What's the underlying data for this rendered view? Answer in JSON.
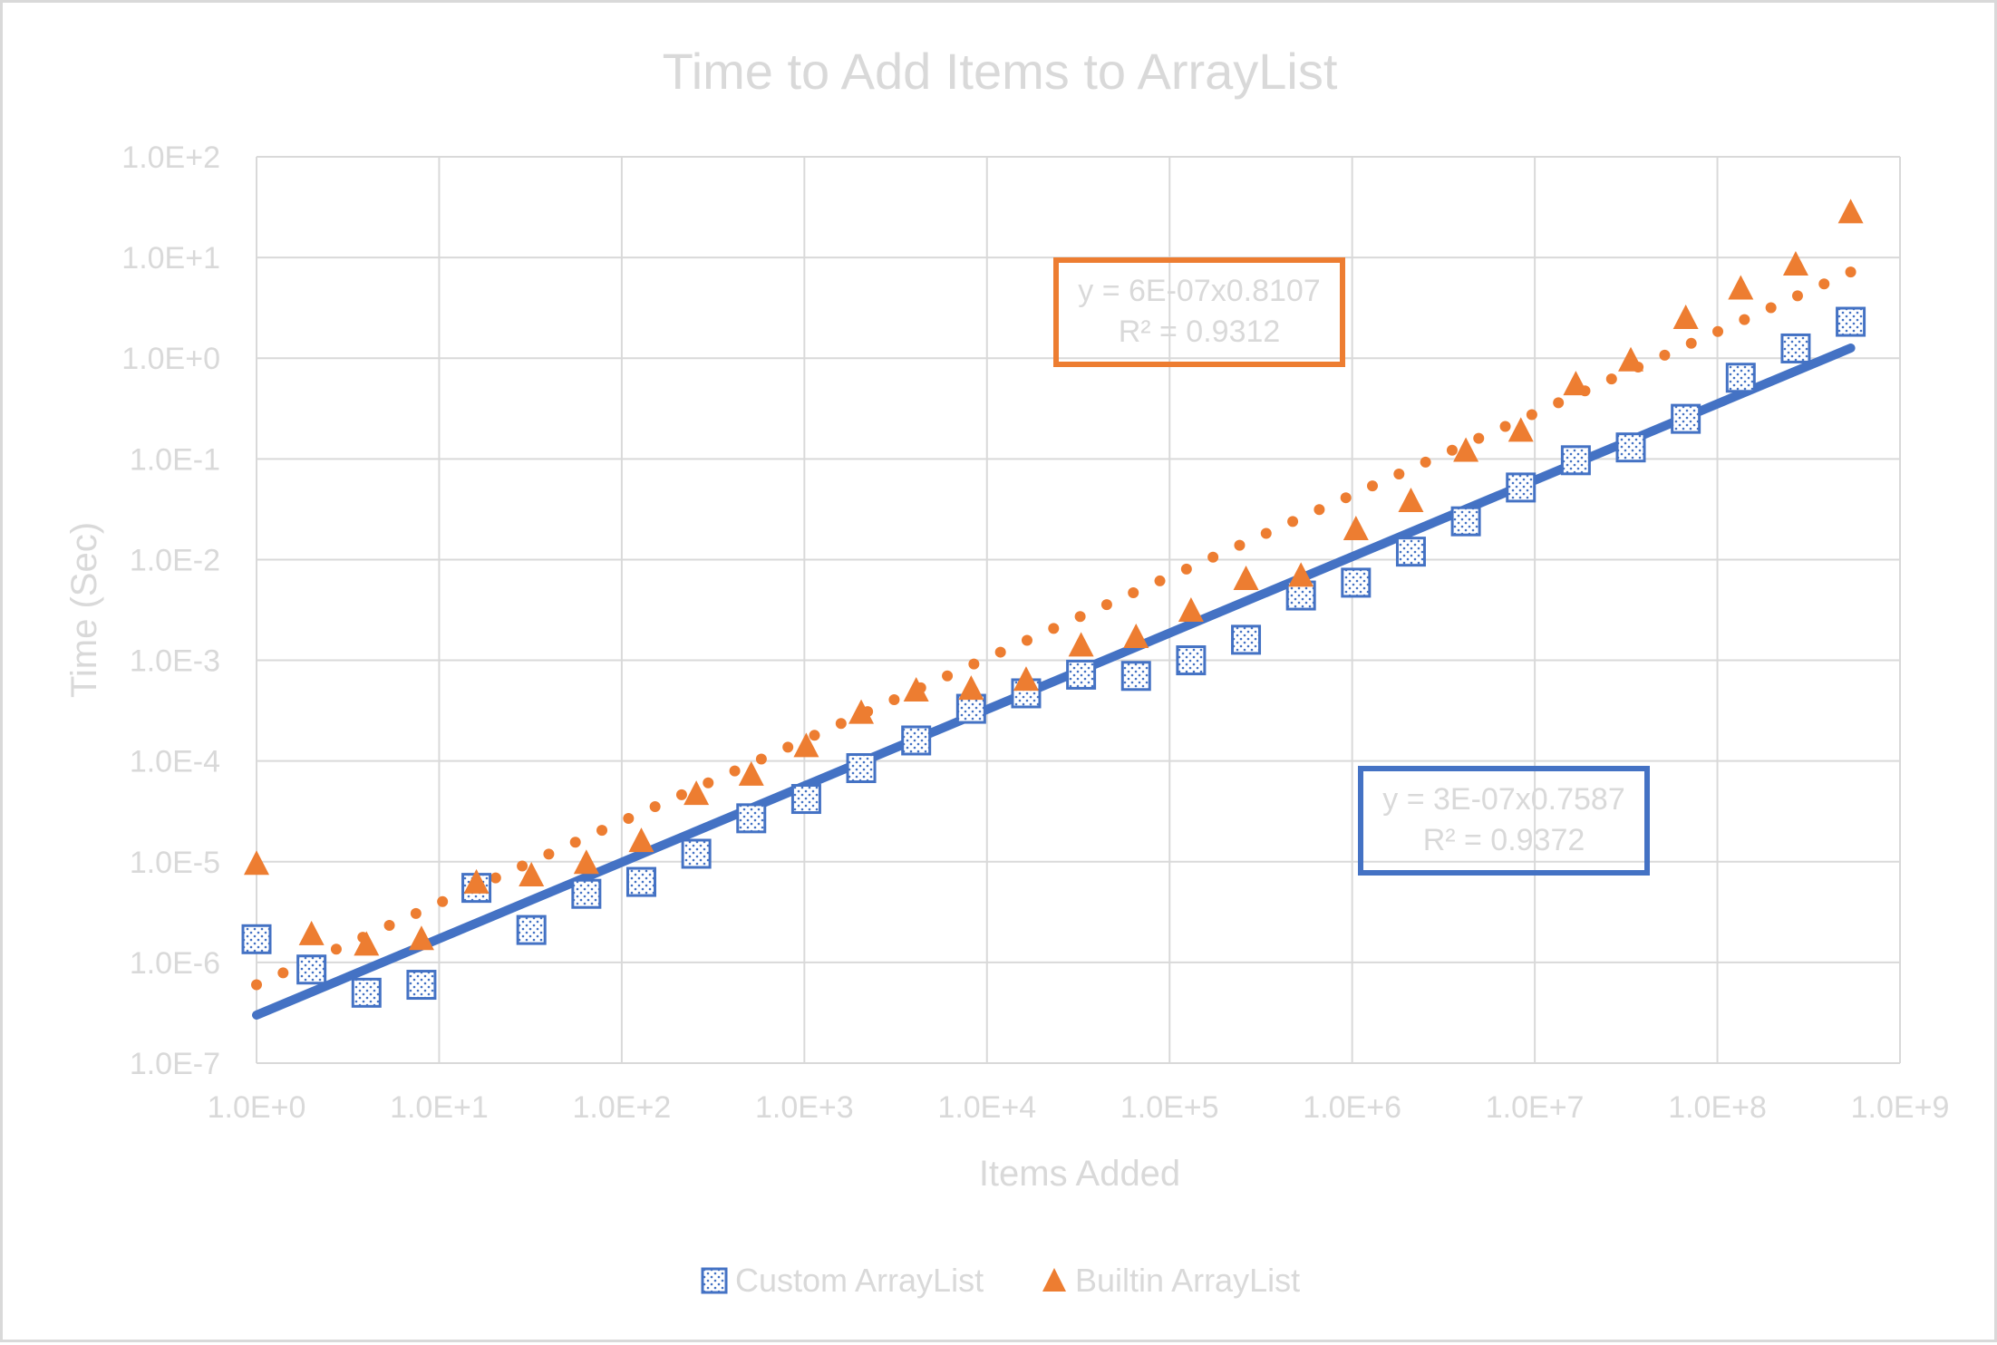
{
  "chart_data": {
    "type": "scatter",
    "title": "Time to Add Items to ArrayList",
    "xlabel": "Items Added",
    "ylabel": "Time (Sec)",
    "x_scale": "log10",
    "y_scale": "log10",
    "xlim": [
      1,
      1000000000
    ],
    "ylim": [
      1e-07,
      100
    ],
    "grid": true,
    "legend_position": "bottom",
    "x_ticks": [
      1,
      10,
      100,
      1000,
      10000,
      100000,
      1000000,
      10000000,
      100000000,
      1000000000
    ],
    "x_tick_labels": [
      "1.0E+0",
      "1.0E+1",
      "1.0E+2",
      "1.0E+3",
      "1.0E+4",
      "1.0E+5",
      "1.0E+6",
      "1.0E+7",
      "1.0E+8",
      "1.0E+9"
    ],
    "y_ticks": [
      1e-07,
      1e-06,
      1e-05,
      0.0001,
      0.001,
      0.01,
      0.1,
      1,
      10,
      100
    ],
    "y_tick_labels": [
      "1.0E-7",
      "1.0E-6",
      "1.0E-5",
      "1.0E-4",
      "1.0E-3",
      "1.0E-2",
      "1.0E-1",
      "1.0E+0",
      "1.0E+1",
      "1.0E+2"
    ],
    "x": [
      1,
      2,
      4,
      8,
      16,
      32,
      64,
      128,
      256,
      512,
      1024,
      2048,
      4096,
      8192,
      16384,
      32768,
      65536,
      131072,
      262144,
      524288,
      1048576,
      2097152,
      4194304,
      8388608,
      16777216,
      33554432,
      67108864,
      134217728,
      268435456,
      536870912
    ],
    "series": [
      {
        "name": "Custom ArrayList",
        "color": "#4472c4",
        "marker": "square",
        "values": [
          1.7e-06,
          8.5e-07,
          5e-07,
          6e-07,
          5.5e-06,
          2.1e-06,
          4.8e-06,
          6.3e-06,
          1.2e-05,
          2.7e-05,
          4.2e-05,
          8.5e-05,
          0.00016,
          0.00033,
          0.00047,
          0.00072,
          0.0007,
          0.001,
          0.0016,
          0.0044,
          0.0059,
          0.012,
          0.024,
          0.052,
          0.097,
          0.13,
          0.25,
          0.64,
          1.25,
          2.3
        ],
        "trendline": {
          "type": "power",
          "a": 3e-07,
          "b": 0.7587,
          "equation": "y = 3E-07x0.7587",
          "r2": "R² = 0.9372"
        }
      },
      {
        "name": "Builtin ArrayList",
        "color": "#ed7d31",
        "marker": "triangle",
        "values": [
          9.5e-06,
          1.9e-06,
          1.5e-06,
          1.7e-06,
          6.2e-06,
          7.3e-06,
          9.7e-06,
          1.6e-05,
          4.7e-05,
          7.3e-05,
          0.00014,
          0.0003,
          0.0005,
          0.00052,
          0.00064,
          0.0014,
          0.0017,
          0.0031,
          0.0064,
          0.0069,
          0.02,
          0.038,
          0.12,
          0.19,
          0.55,
          0.95,
          2.5,
          4.9,
          8.5,
          28
        ],
        "trendline": {
          "type": "power",
          "a": 6e-07,
          "b": 0.8107,
          "equation": "y = 6E-07x0.8107",
          "r2": "R² = 0.9312"
        }
      }
    ]
  }
}
